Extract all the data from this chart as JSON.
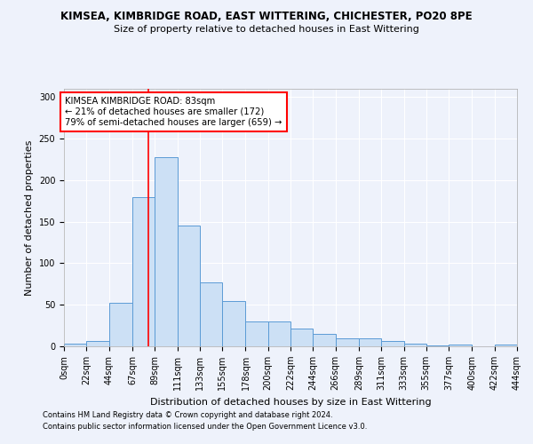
{
  "title": "KIMSEA, KIMBRIDGE ROAD, EAST WITTERING, CHICHESTER, PO20 8PE",
  "subtitle": "Size of property relative to detached houses in East Wittering",
  "xlabel": "Distribution of detached houses by size in East Wittering",
  "ylabel": "Number of detached properties",
  "bar_color": "#cce0f5",
  "bar_edge_color": "#5b9bd5",
  "background_color": "#eef2fb",
  "grid_color": "#ffffff",
  "bins": [
    0,
    22,
    44,
    67,
    89,
    111,
    133,
    155,
    178,
    200,
    222,
    244,
    266,
    289,
    311,
    333,
    355,
    377,
    400,
    422,
    444
  ],
  "bin_labels": [
    "0sqm",
    "22sqm",
    "44sqm",
    "67sqm",
    "89sqm",
    "111sqm",
    "133sqm",
    "155sqm",
    "178sqm",
    "200sqm",
    "222sqm",
    "244sqm",
    "266sqm",
    "289sqm",
    "311sqm",
    "333sqm",
    "355sqm",
    "377sqm",
    "400sqm",
    "422sqm",
    "444sqm"
  ],
  "values": [
    3,
    6,
    52,
    180,
    228,
    145,
    77,
    55,
    30,
    30,
    21,
    15,
    10,
    10,
    6,
    3,
    1,
    2,
    0,
    2
  ],
  "red_line_x": 83,
  "annotation_line1": "KIMSEA KIMBRIDGE ROAD: 83sqm",
  "annotation_line2": "← 21% of detached houses are smaller (172)",
  "annotation_line3": "79% of semi-detached houses are larger (659) →",
  "ylim": [
    0,
    310
  ],
  "yticks": [
    0,
    50,
    100,
    150,
    200,
    250,
    300
  ],
  "footnote1": "Contains HM Land Registry data © Crown copyright and database right 2024.",
  "footnote2": "Contains public sector information licensed under the Open Government Licence v3.0.",
  "title_fontsize": 8.5,
  "subtitle_fontsize": 8.0,
  "footnote_fontsize": 6.0,
  "axis_label_fontsize": 8.0,
  "tick_fontsize": 7.0
}
